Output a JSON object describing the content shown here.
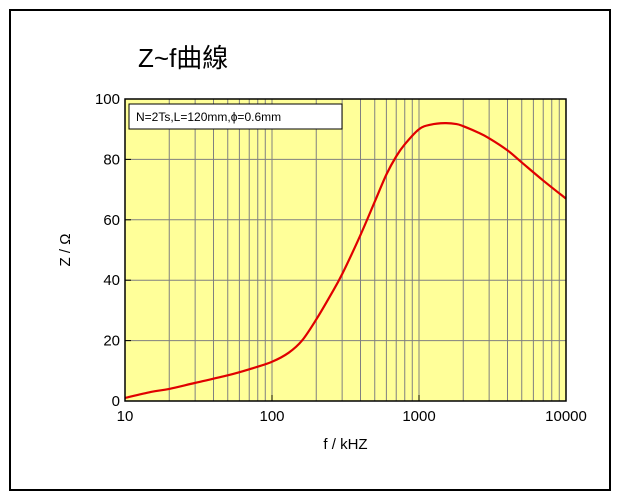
{
  "chart_data": {
    "type": "line",
    "title": "Z~f曲線",
    "xlabel": "f / kHZ",
    "ylabel": "Z / Ω",
    "xscale": "log",
    "xlim": [
      10,
      10000
    ],
    "ylim": [
      0,
      100
    ],
    "xticks": [
      "10",
      "100",
      "1000",
      "10000"
    ],
    "yticks": [
      "0",
      "20",
      "40",
      "60",
      "80",
      "100"
    ],
    "grid": true,
    "background_color": "#ffff99",
    "legend": {
      "text": "N=2Ts,L=120mm,ϕ=0.6mm",
      "placement": "top-left"
    },
    "series": [
      {
        "color": "#e00000",
        "x": [
          10,
          15,
          20,
          30,
          50,
          70,
          100,
          130,
          160,
          200,
          250,
          300,
          400,
          500,
          600,
          700,
          800,
          1000,
          1200,
          1500,
          1800,
          2000,
          2500,
          3000,
          4000,
          5000,
          7000,
          10000
        ],
        "y": [
          1,
          3,
          4,
          6,
          8.5,
          10.5,
          13,
          16,
          20,
          27,
          35,
          42,
          55,
          66,
          75,
          81,
          85,
          90,
          91.5,
          92,
          91.7,
          91,
          89,
          87,
          83,
          79,
          73,
          67
        ]
      }
    ]
  }
}
